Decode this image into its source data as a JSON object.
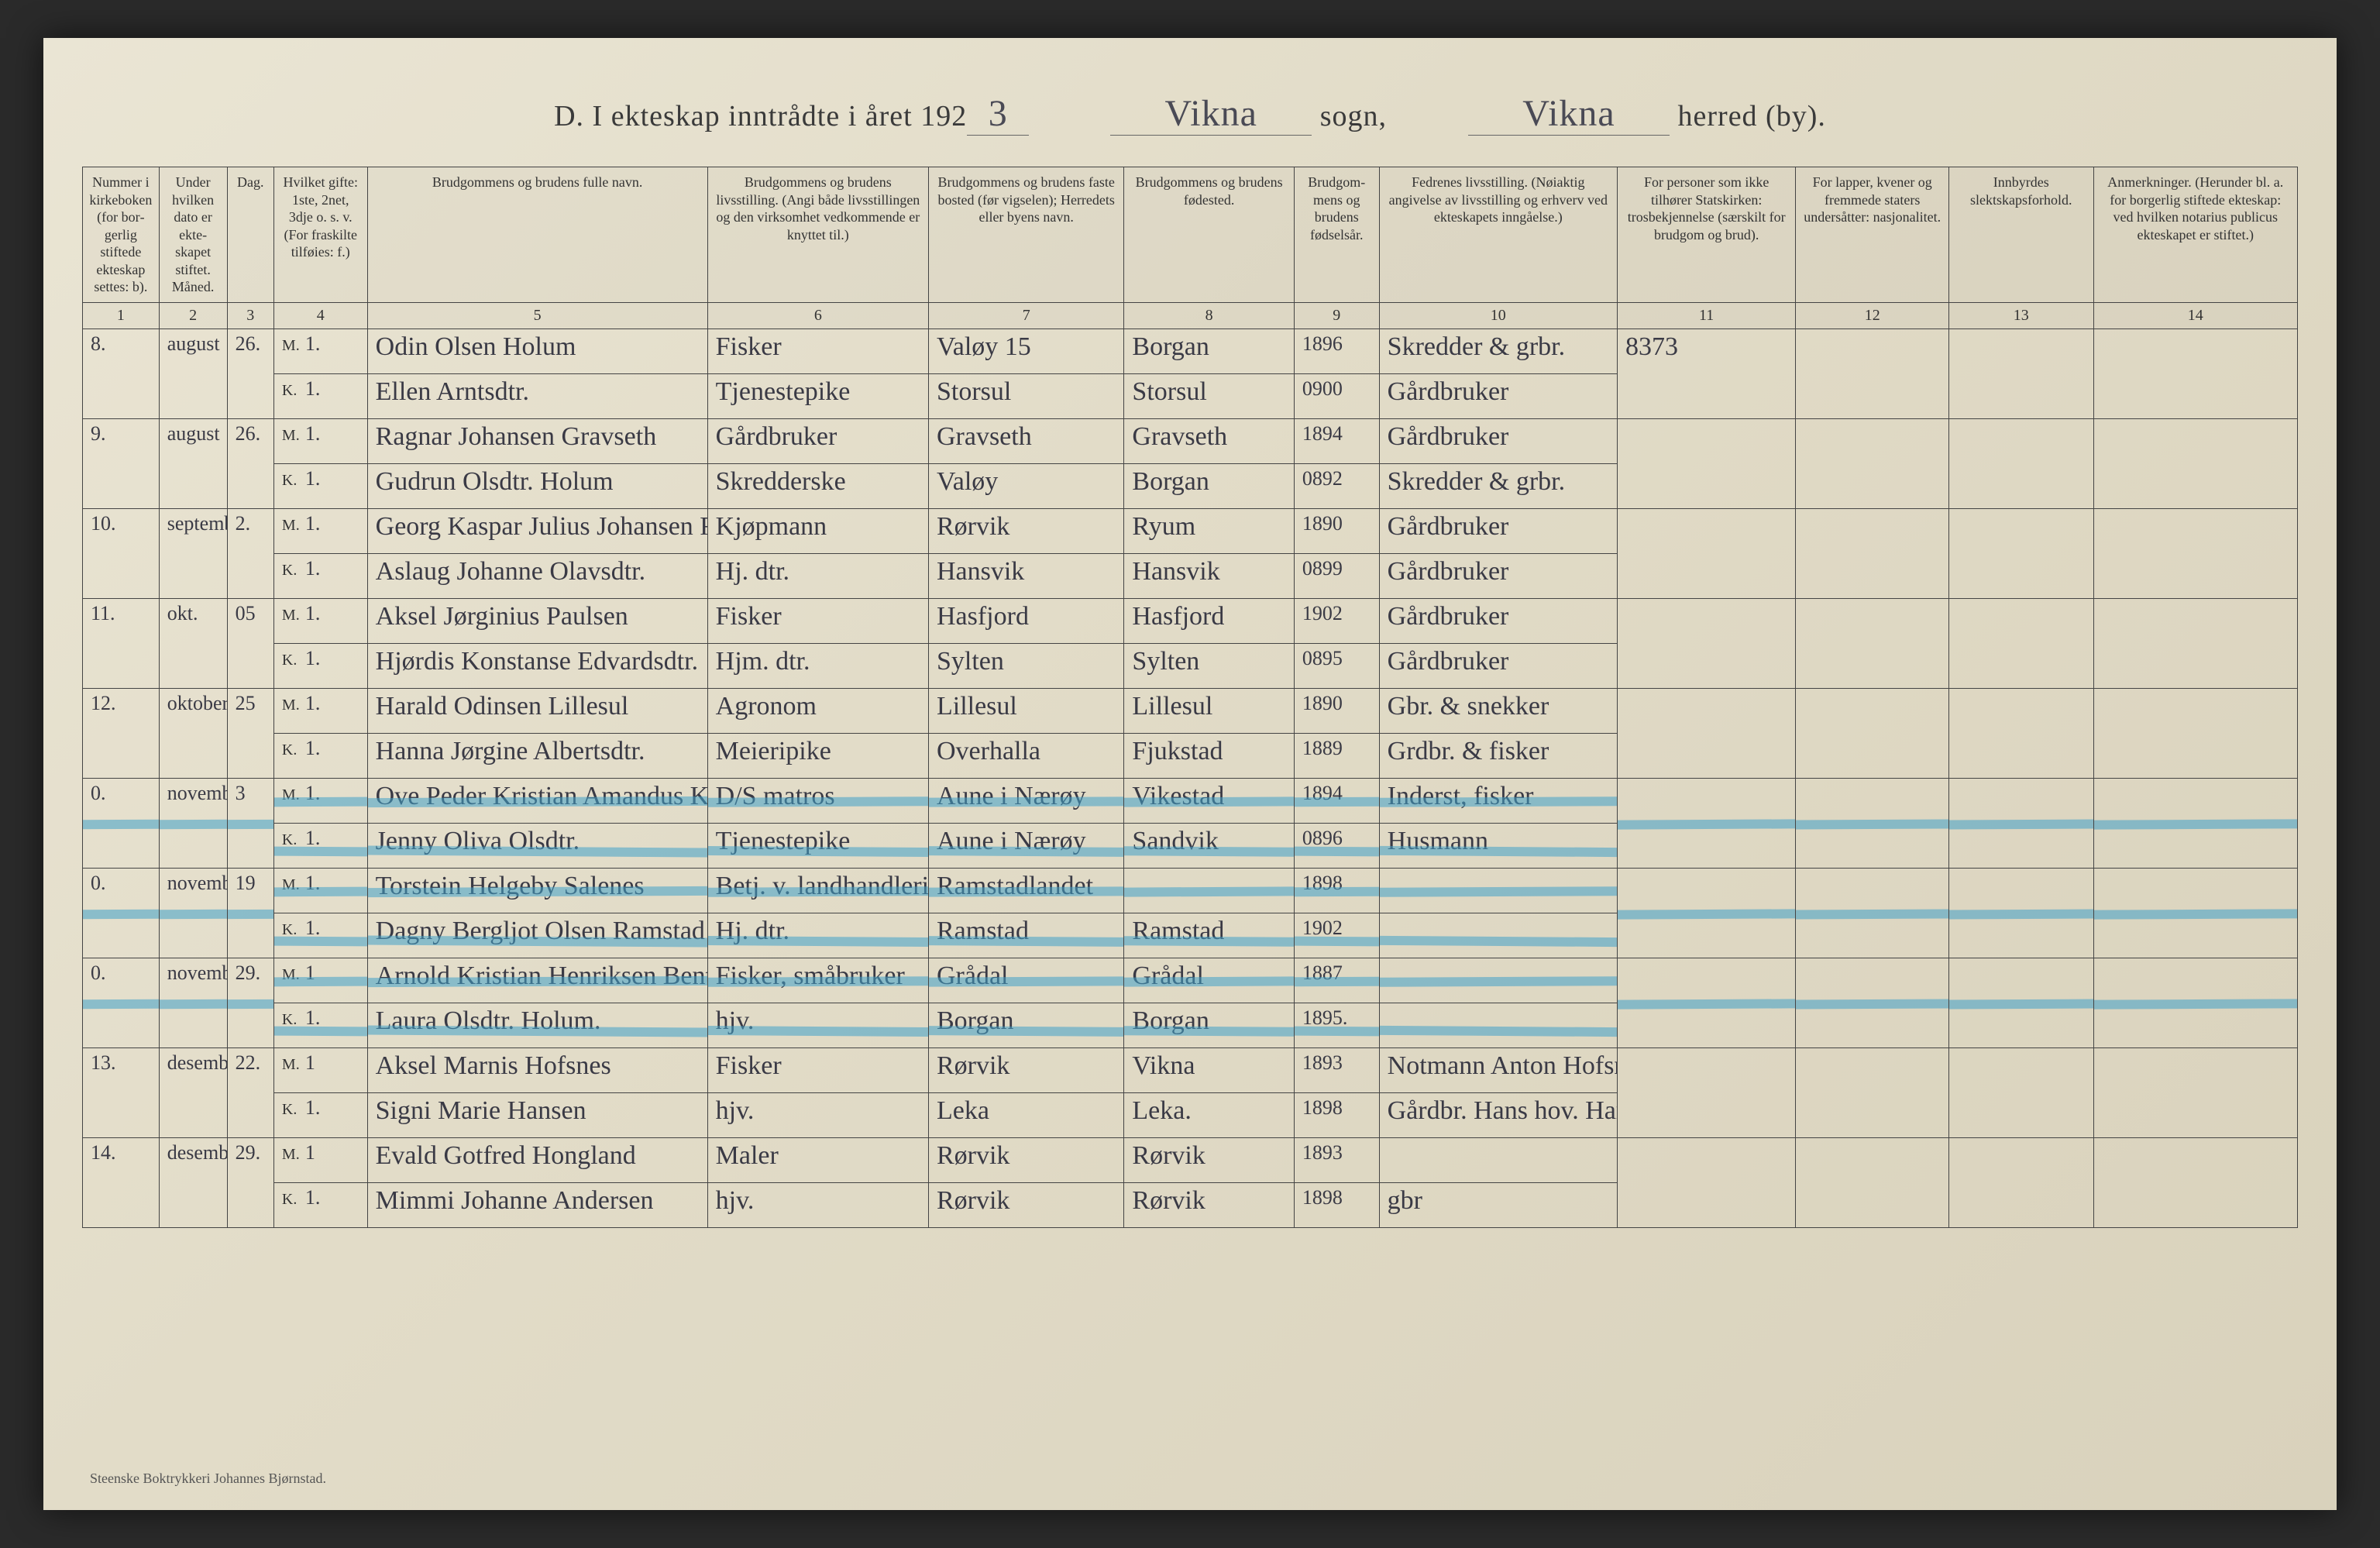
{
  "colors": {
    "page_bg_from": "#eae5d4",
    "page_bg_to": "#d9d2bc",
    "ink": "#3a3a45",
    "rule": "#444444",
    "crayon": "#3fa0c8"
  },
  "header": {
    "prefix": "D.  I ekteskap inntrådte i året 192",
    "year_suffix": "3",
    "sogn_value": "Vikna",
    "sogn_label": "sogn,",
    "herred_value": "Vikna",
    "herred_label": "herred (by)."
  },
  "columns": [
    {
      "n": "1",
      "label": "Nummer i kirke­boken (for bor­gerlig stiftede ekte­skap settes: b)."
    },
    {
      "n": "2",
      "label": "Under hvilken dato er ekte­skapet stiftet. Måned."
    },
    {
      "n": "3",
      "label": "Dag."
    },
    {
      "n": "4",
      "label": "Hvilket gifte: 1ste, 2net, 3dje o. s. v. (For fraskilte tilføies: f.)"
    },
    {
      "n": "5",
      "label": "Brudgommens og brudens fulle navn."
    },
    {
      "n": "6",
      "label": "Brudgommens og brudens livsstilling. (Angi både livsstillingen og den virksomhet vedkommende er knyttet til.)"
    },
    {
      "n": "7",
      "label": "Brudgommens og brudens faste bosted (før vigselen); Herredets eller byens navn."
    },
    {
      "n": "8",
      "label": "Brudgommens og brudens fødested."
    },
    {
      "n": "9",
      "label": "Brudgom­mens og brudens fødsels­år."
    },
    {
      "n": "10",
      "label": "Fedrenes livsstilling. (Nøiaktig angivelse av livsstilling og erhverv ved ekteskapets inngåelse.)"
    },
    {
      "n": "11",
      "label": "For personer som ikke tilhører Statskirken: trosbekjennelse (særskilt for brudgom og brud)."
    },
    {
      "n": "12",
      "label": "For lapper, kvener og fremmede staters undersåtter: nasjonalitet."
    },
    {
      "n": "13",
      "label": "Innbyrdes slektskapsforhold."
    },
    {
      "n": "14",
      "label": "Anmerkninger. (Herunder bl. a. for borgerlig stiftede ekte­skap: ved hvilken notarius publicus ekteskapet er stiftet.)"
    }
  ],
  "entries": [
    {
      "num": "8.",
      "month": "august",
      "day": "26.",
      "crossed": false,
      "m": {
        "gifte": "1.",
        "name": "Odin Olsen Holum",
        "occ": "Fisker",
        "res": "Valøy 15",
        "born": "Borgan",
        "year": "1896",
        "father": "Skredder & grbr."
      },
      "k": {
        "gifte": "1.",
        "name": "Ellen Arntsdtr.",
        "occ": "Tjenestepike",
        "res": "Storsul",
        "born": "Storsul",
        "year": "0900",
        "father": "Gårdbruker"
      },
      "c11": "8373"
    },
    {
      "num": "9.",
      "month": "au­gust",
      "day": "26.",
      "crossed": false,
      "m": {
        "gifte": "1.",
        "name": "Ragnar Johansen Gravseth",
        "occ": "Gårdbruker",
        "res": "Gravseth",
        "born": "Gravseth",
        "year": "1894",
        "father": "Gårdbruker"
      },
      "k": {
        "gifte": "1.",
        "name": "Gudrun Olsdtr. Holum",
        "occ": "Skredderske",
        "res": "Valøy",
        "born": "Borgan",
        "year": "0892",
        "father": "Skredder & grbr."
      }
    },
    {
      "num": "10.",
      "month": "septem­ber",
      "day": "2.",
      "crossed": false,
      "m": {
        "gifte": "1.",
        "name": "Georg Kaspar Julius Johansen Ryum",
        "occ": "Kjøpmann",
        "res": "Rørvik",
        "born": "Ryum",
        "year": "1890",
        "father": "Gårdbruker"
      },
      "k": {
        "gifte": "1.",
        "name": "Aslaug Johanne Olavsdtr.",
        "occ": "Hj. dtr.",
        "res": "Hansvik",
        "born": "Hansvik",
        "year": "0899",
        "father": "Gårdbruker"
      }
    },
    {
      "num": "11.",
      "month": "okt.",
      "day": "05",
      "crossed": false,
      "m": {
        "gifte": "1.",
        "name": "Aksel Jørginius Paulsen",
        "occ": "Fisker",
        "res": "Hasfjord",
        "born": "Hasfjord",
        "year": "1902",
        "father": "Gårdbruker"
      },
      "k": {
        "gifte": "1.",
        "name": "Hjørdis Konstanse Edvardsdtr.",
        "occ": "Hjm. dtr.",
        "res": "Sylten",
        "born": "Sylten",
        "year": "0895",
        "father": "Gårdbruker"
      }
    },
    {
      "num": "12.",
      "month": "okto­ber",
      "day": "25",
      "crossed": false,
      "m": {
        "gifte": "1.",
        "name": "Harald Odinsen Lillesul",
        "occ": "Agronom",
        "res": "Lillesul",
        "born": "Lillesul",
        "year": "1890",
        "father": "Gbr. & snekker"
      },
      "k": {
        "gifte": "1.",
        "name": "Hanna Jørgine Albertsdtr.",
        "occ": "Meieripike",
        "res": "Overhalla",
        "born": "Fjukstad",
        "year": "1889",
        "father": "Grdbr. & fisker"
      }
    },
    {
      "num": "0.",
      "month": "novem­ber",
      "day": "3",
      "crossed": true,
      "m": {
        "gifte": "1.",
        "name": "Ove Peder Kristian Amandus Kråkøy",
        "occ": "D/S matros",
        "res": "Aune i Nærøy",
        "born": "Vikestad",
        "year": "1894",
        "father": "Inderst, fisker"
      },
      "k": {
        "gifte": "1.",
        "name": "Jenny Oliva Olsdtr.",
        "occ": "Tjenestepike",
        "res": "Aune i Nærøy",
        "born": "Sandvik",
        "year": "0896",
        "father": "Husmann"
      }
    },
    {
      "num": "0.",
      "month": "novem­ber",
      "day": "19",
      "crossed": true,
      "m": {
        "gifte": "1.",
        "name": "Torstein Helgeby Salenes",
        "occ": "Betj. v. landhandleri",
        "res": "Ramstadlandet",
        "born": "",
        "year": "1898",
        "father": ""
      },
      "k": {
        "gifte": "1.",
        "name": "Dagny Bergljot Olsen Ramstad",
        "occ": "Hj. dtr.",
        "res": "Ramstad",
        "born": "Ramstad",
        "year": "1902",
        "father": ""
      }
    },
    {
      "num": "0.",
      "month": "november",
      "day": "29.",
      "crossed": true,
      "m": {
        "gifte": "1",
        "name": "Arnold Kristian Henriksen Bentø",
        "occ": "Fisker, småbruker",
        "res": "Grådal",
        "born": "Grådal",
        "year": "1887",
        "father": ""
      },
      "k": {
        "gifte": "1.",
        "name": "Laura Olsdtr. Holum.",
        "occ": "hjv.",
        "res": "Borgan",
        "born": "Borgan",
        "year": "1895.",
        "father": ""
      }
    },
    {
      "num": "13.",
      "month": "desember",
      "day": "22.",
      "crossed": false,
      "m": {
        "gifte": "1",
        "name": "Aksel Marnis Hofsnes",
        "occ": "Fisker",
        "res": "Rørvik",
        "born": "Vikna",
        "year": "1893",
        "father": "Notmann Anton Hofsnes"
      },
      "k": {
        "gifte": "1.",
        "name": "Signi Marie Hansen",
        "occ": "hjv.",
        "res": "Leka",
        "born": "Leka.",
        "year": "1898",
        "father": "Gårdbr. Hans hov. Hansen"
      }
    },
    {
      "num": "14.",
      "month": "desember",
      "day": "29.",
      "crossed": false,
      "m": {
        "gifte": "1",
        "name": "Evald Gotfred Hongland",
        "occ": "Maler",
        "res": "Rørvik",
        "born": "Rørvik",
        "year": "1893",
        "father": ""
      },
      "k": {
        "gifte": "1.",
        "name": "Mimmi Johanne Andersen",
        "occ": "hjv.",
        "res": "Rørvik",
        "born": "Rørvik",
        "year": "1898",
        "father": "gbr"
      }
    }
  ],
  "footer": "Steenske Boktrykkeri Johannes Bjørnstad."
}
